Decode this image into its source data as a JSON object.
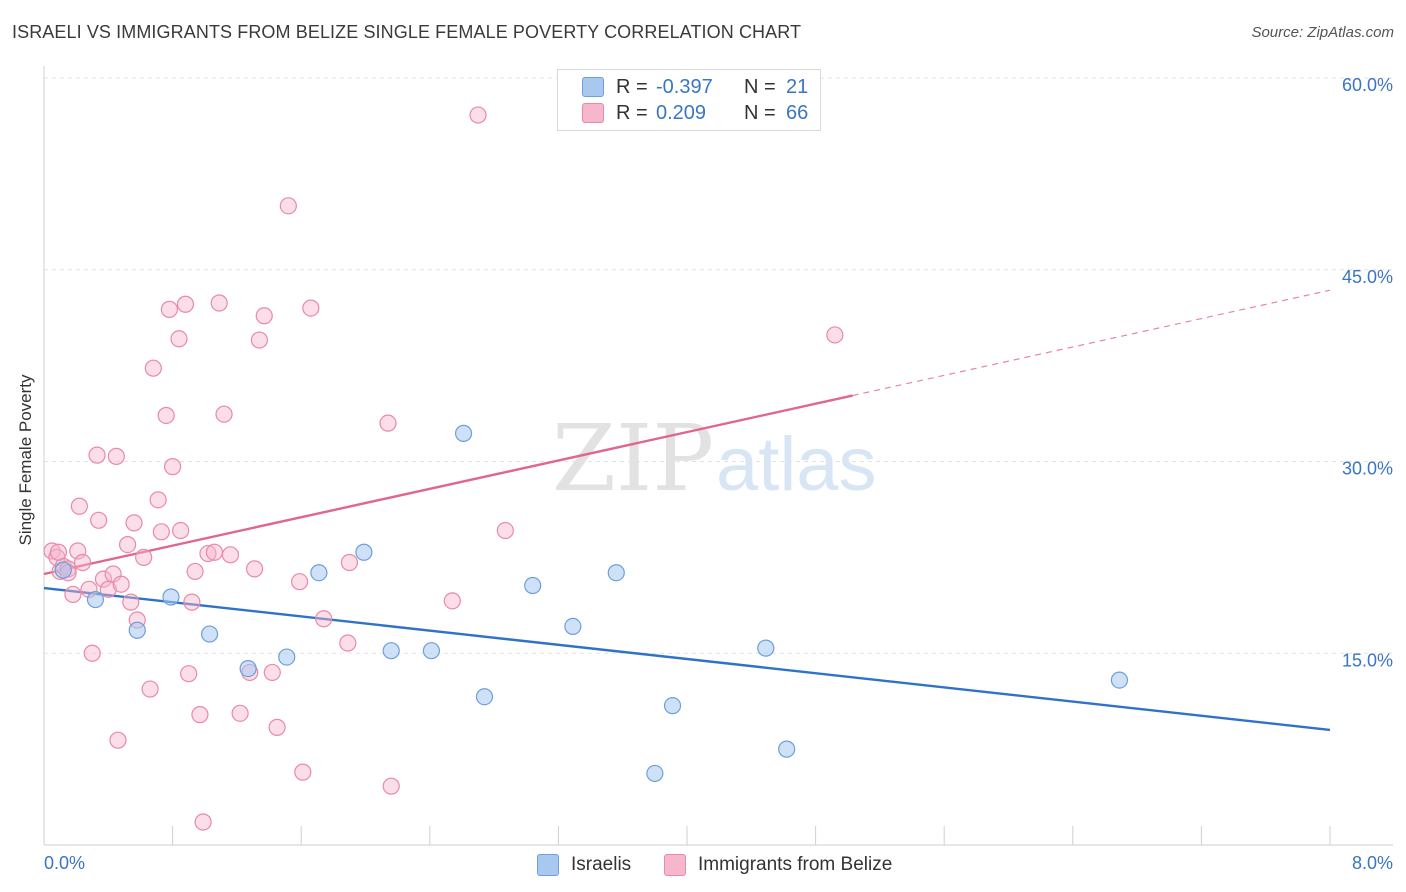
{
  "title": "ISRAELI VS IMMIGRANTS FROM BELIZE SINGLE FEMALE POVERTY CORRELATION CHART",
  "source": "Source: ZipAtlas.com",
  "watermark": {
    "zip": "ZIP",
    "atlas": "atlas"
  },
  "legend": {
    "rows": [
      {
        "r_label": "R =",
        "r_value": "-0.397",
        "n_label": "N =",
        "n_value": "21",
        "color": "#a8c8f0"
      },
      {
        "r_label": "R =",
        "r_value": "0.209",
        "n_label": "N =",
        "n_value": "66",
        "color": "#f6b6cb"
      }
    ]
  },
  "chart_data": {
    "type": "scatter",
    "ylabel": "Single Female Poverty",
    "xlabel": "",
    "xlim": [
      0,
      8
    ],
    "ylim": [
      0,
      60
    ],
    "x_tick_labels": [
      {
        "value": 0,
        "label": "0.0%"
      },
      {
        "value": 8,
        "label": "8.0%"
      }
    ],
    "y_tick_labels": [
      {
        "value": 15,
        "label": "15.0%"
      },
      {
        "value": 30,
        "label": "30.0%"
      },
      {
        "value": 45,
        "label": "45.0%"
      },
      {
        "value": 60,
        "label": "60.0%"
      }
    ],
    "series": [
      {
        "name": "Israelis",
        "color": "#a8c8f0",
        "stroke": "#6d9fdc",
        "line_color": "#2f72c8",
        "trend": {
          "x0": 0,
          "y0": 20.1,
          "x1": 8,
          "y1": 9.0,
          "solid_until": 8
        },
        "points": [
          [
            0.12,
            21.5
          ],
          [
            0.32,
            19.2
          ],
          [
            0.58,
            16.8
          ],
          [
            0.79,
            19.4
          ],
          [
            1.03,
            16.5
          ],
          [
            1.27,
            13.8
          ],
          [
            1.51,
            14.7
          ],
          [
            1.71,
            21.3
          ],
          [
            1.99,
            22.9
          ],
          [
            2.16,
            15.2
          ],
          [
            2.41,
            15.2
          ],
          [
            2.61,
            32.2
          ],
          [
            2.74,
            11.6
          ],
          [
            3.04,
            20.3
          ],
          [
            3.29,
            17.1
          ],
          [
            3.56,
            21.3
          ],
          [
            3.8,
            5.6
          ],
          [
            3.91,
            10.9
          ],
          [
            4.49,
            15.4
          ],
          [
            4.62,
            7.5
          ],
          [
            6.69,
            12.9
          ]
        ]
      },
      {
        "name": "Immigrants from Belize",
        "color": "#f6b6cb",
        "stroke": "#e88aa8",
        "line_color": "#e0668f",
        "trend": {
          "x0": 0,
          "y0": 21.2,
          "x1": 8,
          "y1": 43.4,
          "solid_until": 5.03
        },
        "points": [
          [
            0.05,
            23.0
          ],
          [
            0.08,
            22.5
          ],
          [
            0.1,
            21.4
          ],
          [
            0.12,
            21.8
          ],
          [
            0.15,
            21.6
          ],
          [
            0.18,
            19.6
          ],
          [
            0.21,
            23.0
          ],
          [
            0.22,
            26.5
          ],
          [
            0.24,
            22.1
          ],
          [
            0.28,
            20.0
          ],
          [
            0.3,
            15.0
          ],
          [
            0.33,
            30.5
          ],
          [
            0.34,
            25.4
          ],
          [
            0.37,
            20.8
          ],
          [
            0.4,
            20.0
          ],
          [
            0.43,
            21.2
          ],
          [
            0.45,
            30.4
          ],
          [
            0.46,
            8.2
          ],
          [
            0.48,
            20.4
          ],
          [
            0.52,
            23.5
          ],
          [
            0.54,
            19.0
          ],
          [
            0.56,
            25.2
          ],
          [
            0.58,
            17.6
          ],
          [
            0.62,
            22.5
          ],
          [
            0.66,
            12.2
          ],
          [
            0.68,
            37.3
          ],
          [
            0.71,
            27.0
          ],
          [
            0.73,
            24.5
          ],
          [
            0.76,
            33.6
          ],
          [
            0.78,
            41.9
          ],
          [
            0.8,
            29.6
          ],
          [
            0.84,
            39.6
          ],
          [
            0.85,
            24.6
          ],
          [
            0.88,
            42.3
          ],
          [
            0.9,
            13.4
          ],
          [
            0.92,
            19.0
          ],
          [
            0.94,
            21.4
          ],
          [
            0.97,
            10.2
          ],
          [
            0.99,
            1.8
          ],
          [
            1.02,
            22.8
          ],
          [
            1.06,
            22.9
          ],
          [
            1.09,
            42.4
          ],
          [
            1.12,
            33.7
          ],
          [
            1.16,
            22.7
          ],
          [
            1.22,
            10.3
          ],
          [
            1.28,
            13.5
          ],
          [
            1.31,
            21.6
          ],
          [
            1.34,
            39.5
          ],
          [
            1.37,
            41.4
          ],
          [
            1.42,
            13.5
          ],
          [
            1.45,
            9.2
          ],
          [
            1.52,
            50.0
          ],
          [
            1.59,
            20.6
          ],
          [
            1.61,
            5.7
          ],
          [
            1.66,
            42.0
          ],
          [
            1.74,
            17.7
          ],
          [
            1.89,
            15.8
          ],
          [
            1.9,
            22.1
          ],
          [
            2.14,
            33.0
          ],
          [
            2.16,
            4.6
          ],
          [
            2.54,
            19.1
          ],
          [
            2.7,
            57.1
          ],
          [
            2.87,
            24.6
          ],
          [
            4.92,
            39.9
          ],
          [
            0.15,
            21.3
          ],
          [
            0.09,
            22.9
          ]
        ]
      }
    ]
  },
  "bottom_legend": [
    {
      "label": "Israelis",
      "color": "#a8c8f0"
    },
    {
      "label": "Immigrants from Belize",
      "color": "#f6b6cb"
    }
  ]
}
